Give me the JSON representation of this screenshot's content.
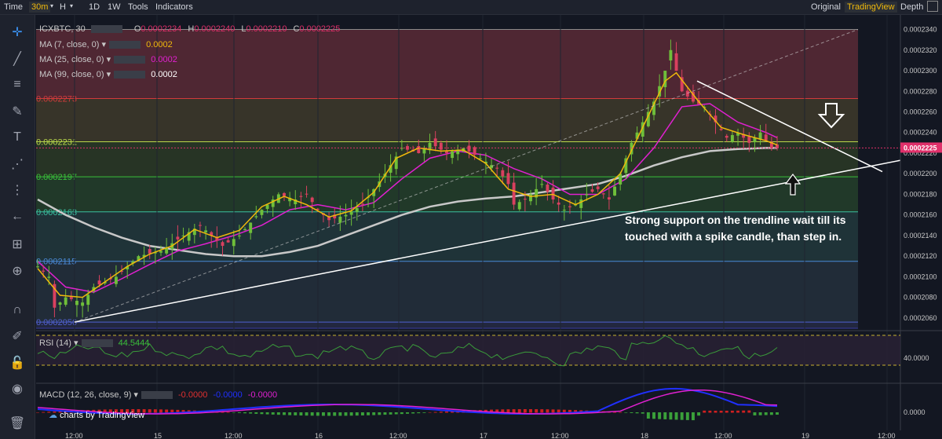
{
  "toolbar": {
    "left": [
      "Time",
      "30m",
      "H",
      "1D",
      "1W",
      "Tools",
      "Indicators"
    ],
    "active_interval": "30m",
    "right": [
      "Original",
      "TradingView",
      "Depth"
    ],
    "active_view": "TradingView"
  },
  "icons": [
    "crosshair-icon",
    "trendline-icon",
    "horizontal-lines-icon",
    "brush-icon",
    "text-icon",
    "pattern-icon",
    "fib-icon",
    "back-arrow-icon",
    "measure-icon",
    "zoom-icon",
    "magnet-icon",
    "lock-drawing-icon",
    "unlock-icon",
    "eye-icon",
    "trash-icon"
  ],
  "legend": {
    "symbol": "ICXBTC, 30",
    "ohlc": [
      {
        "k": "O",
        "v": "0.0002234"
      },
      {
        "k": "H",
        "v": "0.0002240"
      },
      {
        "k": "L",
        "v": "0.0002210"
      },
      {
        "k": "C",
        "v": "0.0002225"
      }
    ],
    "ma": [
      {
        "name": "MA (7, close, 0)",
        "value": "0.0002",
        "color": "#f0b90b"
      },
      {
        "name": "MA (25, close, 0)",
        "value": "0.0002",
        "color": "#e020d0"
      },
      {
        "name": "MA (99, close, 0)",
        "value": "0.0002",
        "color": "#ffffff"
      }
    ]
  },
  "fib_labels": [
    "0.0002273",
    "0.0002231",
    "0.0002197",
    "0.0002163",
    "0.0002115",
    "0.0002056"
  ],
  "rsi": {
    "label": "RSI (14)",
    "value": "44.5444",
    "axis_value": "40.0000"
  },
  "macd": {
    "label": "MACD (12, 26, close, 9)",
    "v1": "-0.0000",
    "v2": "-0.0000",
    "v3": "-0.0000",
    "axis_value": "0.0000"
  },
  "watermark": "charts by TradingView",
  "annotation": "Strong support on the trendline wait till its touched with a spike candle, than step in.",
  "colors": {
    "up": "#6fbf3a",
    "down": "#d9405f",
    "ma7": "#f0b90b",
    "ma25": "#e020d0",
    "ma99": "#c8c8c8",
    "last_price": "#e0306a",
    "rsi": "#3a9a3a",
    "macd": "#2030ff",
    "signal": "#e020d0"
  },
  "chart_data": {
    "type": "candlestick",
    "symbol": "ICXBTC",
    "interval": "30m",
    "y_ticks": [
      "0.0002340",
      "0.0002320",
      "0.0002300",
      "0.0002280",
      "0.0002260",
      "0.0002240",
      "0.0002220",
      "0.0002200",
      "0.0002180",
      "0.0002160",
      "0.0002140",
      "0.0002120",
      "0.0002100",
      "0.0002080",
      "0.0002060"
    ],
    "ylim": [
      0.000205,
      0.0002345
    ],
    "x_ticks": [
      "12:00",
      "15",
      "12:00",
      "16",
      "12:00",
      "17",
      "12:00",
      "18",
      "12:00",
      "19",
      "12:00"
    ],
    "last_price": "0.0002225",
    "fib_levels": [
      0.000234,
      0.0002273,
      0.0002231,
      0.0002197,
      0.0002163,
      0.0002115,
      0.0002056,
      0.000205
    ],
    "close_path": [
      [
        0,
        0.000211
      ],
      [
        2,
        0.00021
      ],
      [
        3,
        0.000207
      ],
      [
        5,
        0.000208
      ],
      [
        8,
        0.0002075
      ],
      [
        10,
        0.000209
      ],
      [
        14,
        0.00021
      ],
      [
        18,
        0.000212
      ],
      [
        22,
        0.0002125
      ],
      [
        26,
        0.000214
      ],
      [
        29,
        0.000215
      ],
      [
        31,
        0.000214
      ],
      [
        33,
        0.000213
      ],
      [
        36,
        0.000214
      ],
      [
        40,
        0.0002165
      ],
      [
        43,
        0.000218
      ],
      [
        46,
        0.0002175
      ],
      [
        48,
        0.000218
      ],
      [
        50,
        0.0002165
      ],
      [
        52,
        0.0002155
      ],
      [
        55,
        0.000216
      ],
      [
        58,
        0.000217
      ],
      [
        60,
        0.0002185
      ],
      [
        62,
        0.00022
      ],
      [
        65,
        0.0002225
      ],
      [
        68,
        0.000222
      ],
      [
        70,
        0.000223
      ],
      [
        73,
        0.000222
      ],
      [
        76,
        0.0002225
      ],
      [
        79,
        0.0002215
      ],
      [
        82,
        0.0002205
      ],
      [
        84,
        0.000219
      ],
      [
        85,
        0.000217
      ],
      [
        87,
        0.0002175
      ],
      [
        90,
        0.000219
      ],
      [
        92,
        0.0002175
      ],
      [
        94,
        0.0002165
      ],
      [
        96,
        0.000217
      ],
      [
        98,
        0.000218
      ],
      [
        100,
        0.0002185
      ],
      [
        102,
        0.0002175
      ],
      [
        104,
        0.00022
      ],
      [
        106,
        0.000223
      ],
      [
        108,
        0.000225
      ],
      [
        110,
        0.000227
      ],
      [
        112,
        0.00023
      ],
      [
        113,
        0.000232
      ],
      [
        115,
        0.000228
      ],
      [
        117,
        0.000227
      ],
      [
        119,
        0.0002265
      ],
      [
        121,
        0.000225
      ],
      [
        123,
        0.0002235
      ],
      [
        125,
        0.000224
      ],
      [
        127,
        0.000223
      ],
      [
        129,
        0.000224
      ],
      [
        131,
        0.0002225
      ],
      [
        132,
        0.0002225
      ]
    ],
    "ma99_path": [
      [
        0,
        0.0002175
      ],
      [
        5,
        0.000216
      ],
      [
        10,
        0.0002148
      ],
      [
        15,
        0.0002138
      ],
      [
        20,
        0.000213
      ],
      [
        25,
        0.0002126
      ],
      [
        30,
        0.0002122
      ],
      [
        35,
        0.000212
      ],
      [
        40,
        0.000212
      ],
      [
        45,
        0.0002124
      ],
      [
        50,
        0.000213
      ],
      [
        55,
        0.000214
      ],
      [
        60,
        0.000215
      ],
      [
        65,
        0.000216
      ],
      [
        70,
        0.0002168
      ],
      [
        75,
        0.0002173
      ],
      [
        80,
        0.0002176
      ],
      [
        85,
        0.0002178
      ],
      [
        90,
        0.0002182
      ],
      [
        95,
        0.0002186
      ],
      [
        100,
        0.000219
      ],
      [
        105,
        0.0002198
      ],
      [
        110,
        0.0002208
      ],
      [
        115,
        0.0002216
      ],
      [
        120,
        0.0002222
      ],
      [
        125,
        0.0002224
      ],
      [
        130,
        0.0002225
      ],
      [
        132,
        0.0002225
      ]
    ],
    "ma25_path": [
      [
        0,
        0.0002115
      ],
      [
        5,
        0.000209
      ],
      [
        10,
        0.0002085
      ],
      [
        15,
        0.0002098
      ],
      [
        20,
        0.0002112
      ],
      [
        25,
        0.0002125
      ],
      [
        30,
        0.0002132
      ],
      [
        35,
        0.000214
      ],
      [
        40,
        0.000215
      ],
      [
        45,
        0.0002165
      ],
      [
        50,
        0.000217
      ],
      [
        55,
        0.0002165
      ],
      [
        60,
        0.0002172
      ],
      [
        65,
        0.0002195
      ],
      [
        70,
        0.0002215
      ],
      [
        75,
        0.0002222
      ],
      [
        80,
        0.0002218
      ],
      [
        85,
        0.0002205
      ],
      [
        90,
        0.0002195
      ],
      [
        95,
        0.000218
      ],
      [
        100,
        0.000218
      ],
      [
        105,
        0.0002195
      ],
      [
        110,
        0.0002225
      ],
      [
        115,
        0.0002265
      ],
      [
        120,
        0.0002268
      ],
      [
        125,
        0.000225
      ],
      [
        130,
        0.000224
      ],
      [
        132,
        0.0002235
      ]
    ],
    "ma7_path": [
      [
        0,
        0.0002108
      ],
      [
        4,
        0.0002082
      ],
      [
        8,
        0.000208
      ],
      [
        12,
        0.0002095
      ],
      [
        16,
        0.000211
      ],
      [
        20,
        0.0002122
      ],
      [
        24,
        0.000213
      ],
      [
        28,
        0.0002146
      ],
      [
        32,
        0.0002138
      ],
      [
        36,
        0.0002145
      ],
      [
        40,
        0.0002168
      ],
      [
        44,
        0.0002178
      ],
      [
        48,
        0.000217
      ],
      [
        52,
        0.0002158
      ],
      [
        56,
        0.0002164
      ],
      [
        60,
        0.0002182
      ],
      [
        64,
        0.0002215
      ],
      [
        68,
        0.0002225
      ],
      [
        72,
        0.0002222
      ],
      [
        76,
        0.0002223
      ],
      [
        80,
        0.000221
      ],
      [
        84,
        0.0002185
      ],
      [
        88,
        0.0002178
      ],
      [
        92,
        0.000218
      ],
      [
        96,
        0.000217
      ],
      [
        100,
        0.000218
      ],
      [
        104,
        0.00022
      ],
      [
        108,
        0.0002245
      ],
      [
        112,
        0.000229
      ],
      [
        114,
        0.0002298
      ],
      [
        118,
        0.000227
      ],
      [
        122,
        0.0002245
      ],
      [
        126,
        0.0002238
      ],
      [
        130,
        0.0002232
      ],
      [
        132,
        0.0002228
      ]
    ]
  }
}
